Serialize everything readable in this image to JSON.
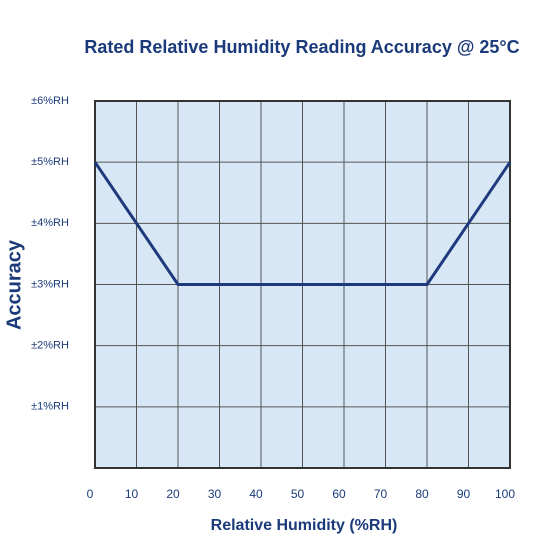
{
  "chart_data": {
    "type": "line",
    "title": "Rated Relative Humidity Reading Accuracy @ 25°C",
    "x_label": "Relative Humidity (%RH)",
    "y_label": "Accuracy",
    "series": [
      {
        "name": "Accuracy",
        "color": "#1f3a7c",
        "x": [
          0,
          20,
          80,
          100
        ],
        "values": [
          5,
          3,
          3,
          5
        ]
      }
    ],
    "xlim": [
      0,
      100
    ],
    "xticks": [
      0,
      10,
      20,
      30,
      40,
      50,
      60,
      70,
      80,
      90,
      100
    ],
    "ylim": [
      0,
      6
    ],
    "yticks": [
      {
        "value": 1,
        "label": "±1%RH"
      },
      {
        "value": 2,
        "label": "±2%RH"
      },
      {
        "value": 3,
        "label": "±3%RH"
      },
      {
        "value": 4,
        "label": "±4%RH"
      },
      {
        "value": 5,
        "label": "±5%RH"
      },
      {
        "value": 6,
        "label": "±6%RH"
      }
    ],
    "grid": true,
    "plot_background": "#d7e7f6"
  }
}
